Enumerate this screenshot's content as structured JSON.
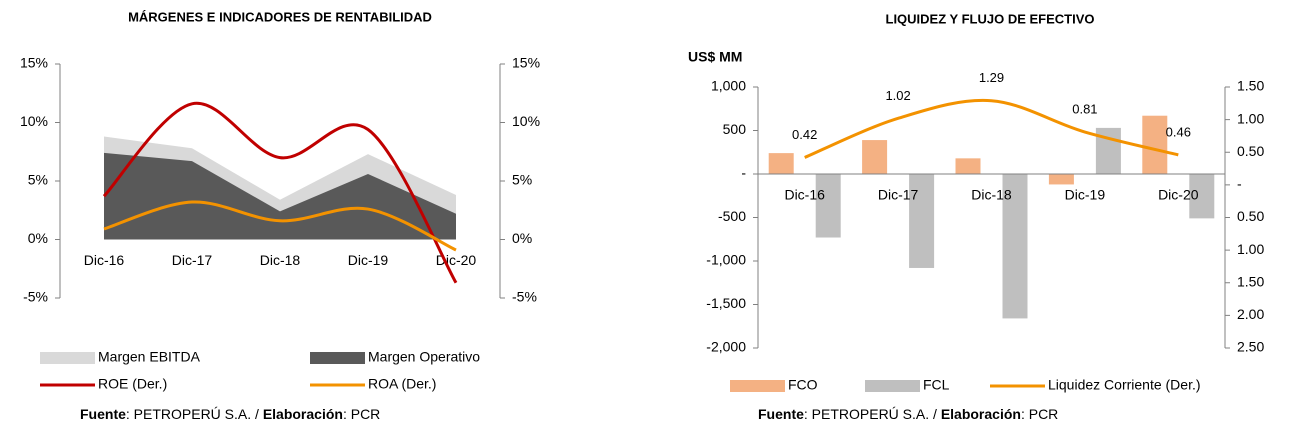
{
  "chart_data": [
    {
      "type": "area",
      "title": "MÁRGENES E INDICADORES DE RENTABILIDAD",
      "categories": [
        "Dic-16",
        "Dic-17",
        "Dic-18",
        "Dic-19",
        "Dic-20"
      ],
      "ylim": [
        -5,
        15
      ],
      "yticks": [
        {
          "value": -5,
          "label": "-5%"
        },
        {
          "value": 0,
          "label": "0%"
        },
        {
          "value": 5,
          "label": "5%"
        },
        {
          "value": 10,
          "label": "10%"
        },
        {
          "value": 15,
          "label": "15%"
        }
      ],
      "y2lim": [
        -5,
        15
      ],
      "y2ticks": [
        {
          "value": -5,
          "label": "-5%"
        },
        {
          "value": 0,
          "label": "0%"
        },
        {
          "value": 5,
          "label": "5%"
        },
        {
          "value": 10,
          "label": "10%"
        },
        {
          "value": 15,
          "label": "15%"
        }
      ],
      "series": [
        {
          "name": "Margen EBITDA",
          "kind": "area",
          "color": "#d9d9d9",
          "values": [
            8.8,
            7.8,
            3.4,
            7.3,
            3.8
          ]
        },
        {
          "name": "Margen Operativo",
          "kind": "area",
          "color": "#595959",
          "values": [
            7.4,
            6.7,
            2.4,
            5.6,
            2.2
          ]
        },
        {
          "name": "ROE (Der.)",
          "kind": "line",
          "axis": "y2",
          "color": "#c00000",
          "values": [
            3.7,
            11.6,
            7.0,
            9.4,
            -3.7
          ]
        },
        {
          "name": "ROA (Der.)",
          "kind": "line",
          "axis": "y2",
          "color": "#f39200",
          "values": [
            0.9,
            3.2,
            1.6,
            2.6,
            -0.9
          ]
        }
      ]
    },
    {
      "type": "bar",
      "title": "LIQUIDEZ Y FLUJO DE EFECTIVO",
      "y_unit_label": "US$ MM",
      "categories": [
        "Dic-16",
        "Dic-17",
        "Dic-18",
        "Dic-19",
        "Dic-20"
      ],
      "ylim": [
        -2000,
        1000
      ],
      "yticks": [
        {
          "value": -2000,
          "label": "-2,000"
        },
        {
          "value": -1500,
          "label": "-1,500"
        },
        {
          "value": -1000,
          "label": "-1,000"
        },
        -500,
        {
          "value": 0,
          "label": "-"
        },
        500,
        {
          "value": 1000,
          "label": "1,000"
        }
      ],
      "y2lim": [
        -2.5,
        1.5
      ],
      "y2ticks": [
        {
          "value": -2.5,
          "label": "2.50"
        },
        {
          "value": -2.0,
          "label": "2.00"
        },
        {
          "value": -1.5,
          "label": "1.50"
        },
        {
          "value": -1.0,
          "label": "1.00"
        },
        {
          "value": -0.5,
          "label": "0.50"
        },
        {
          "value": 0,
          "label": "-"
        },
        {
          "value": 0.5,
          "label": "0.50"
        },
        {
          "value": 1.0,
          "label": "1.00"
        },
        {
          "value": 1.5,
          "label": "1.50"
        }
      ],
      "series": [
        {
          "name": "FCO",
          "kind": "bar",
          "color": "#f4b183",
          "values": [
            240,
            390,
            180,
            -120,
            670
          ]
        },
        {
          "name": "FCL",
          "kind": "bar",
          "color": "#bfbfbf",
          "values": [
            -730,
            -1080,
            -1660,
            530,
            -510
          ]
        },
        {
          "name": "Liquidez Corriente (Der.)",
          "kind": "line",
          "axis": "y2",
          "color": "#f39200",
          "values": [
            0.42,
            1.02,
            1.29,
            0.81,
            0.46
          ],
          "data_labels": true
        }
      ]
    }
  ],
  "sources": [
    {
      "label1": "Fuente",
      "text1": ": PETROPERÚ S.A. / ",
      "label2": "Elaboración",
      "text2": ": PCR"
    },
    {
      "label1": "Fuente",
      "text1": ": PETROPERÚ S.A. / ",
      "label2": "Elaboración",
      "text2": ": PCR"
    }
  ]
}
